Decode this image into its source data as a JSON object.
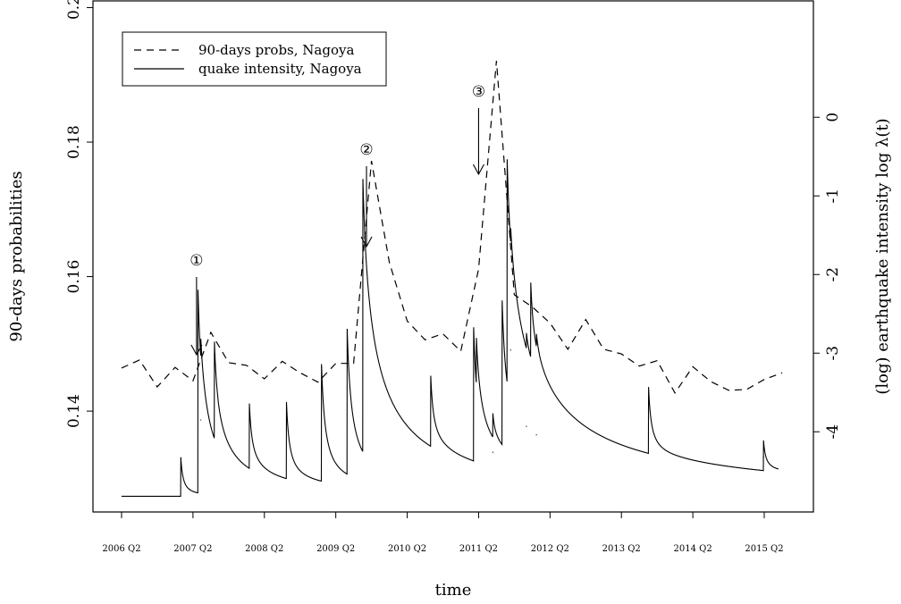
{
  "chart_data": {
    "type": "line",
    "xlabel": "time",
    "ylabel": "90-days probabilities",
    "ylabel_right": "(log) earthquake intensity log λ(t)",
    "ylim": [
      0.125,
      0.201
    ],
    "ylim_right": [
      -5.02,
      1.48
    ],
    "x_ticks": [
      "2006 Q2",
      "2007 Q2",
      "2008 Q2",
      "2009 Q2",
      "2010 Q2",
      "2011 Q2",
      "2012 Q2",
      "2013 Q2",
      "2014 Q2",
      "2015 Q2"
    ],
    "y_ticks": [
      0.14,
      0.16,
      0.18,
      0.2
    ],
    "y_ticks_right": [
      0,
      -1,
      -2,
      -3,
      -4
    ],
    "legend": [
      "90-days probs, Nagoya",
      "quake intensity, Nagoya"
    ],
    "legend_position": "top-left",
    "grid": false,
    "annotations": [
      {
        "label": "①",
        "x": 2007.3
      },
      {
        "label": "②",
        "x": 2009.68
      },
      {
        "label": "③",
        "x": 2011.25
      }
    ],
    "series": [
      {
        "name": "90-days probs, Nagoya",
        "style": "dashed",
        "axis": "left",
        "x": [
          2006.25,
          2006.5,
          2006.75,
          2007.0,
          2007.25,
          2007.5,
          2007.75,
          2008.0,
          2008.25,
          2008.5,
          2008.75,
          2009.0,
          2009.25,
          2009.5,
          2009.75,
          2010.0,
          2010.25,
          2010.5,
          2010.75,
          2011.0,
          2011.25,
          2011.5,
          2011.75,
          2012.0,
          2012.25,
          2012.5,
          2012.75,
          2013.0,
          2013.25,
          2013.5,
          2013.75,
          2014.0,
          2014.25,
          2014.5,
          2014.75,
          2015.0,
          2015.25,
          2015.5
        ],
        "y": [
          0.1464,
          0.1476,
          0.1436,
          0.1465,
          0.1445,
          0.1517,
          0.1472,
          0.1468,
          0.1448,
          0.1474,
          0.1457,
          0.1443,
          0.1471,
          0.1471,
          0.1772,
          0.1621,
          0.1534,
          0.1506,
          0.1515,
          0.1489,
          0.1611,
          0.1921,
          0.1573,
          0.1555,
          0.1531,
          0.1492,
          0.1536,
          0.1492,
          0.1485,
          0.1467,
          0.1475,
          0.1427,
          0.1466,
          0.1444,
          0.1431,
          0.1432,
          0.1447,
          0.1457
        ]
      },
      {
        "name": "quake intensity, Nagoya",
        "style": "solid",
        "axis": "right",
        "baseline": -4.82,
        "events": [
          {
            "x": 2007.08,
            "y": -4.33
          },
          {
            "x": 2007.32,
            "y": -2.2
          },
          {
            "x": 2007.36,
            "y": -3.85
          },
          {
            "x": 2007.55,
            "y": -3.02
          },
          {
            "x": 2008.04,
            "y": -3.78
          },
          {
            "x": 2008.56,
            "y": -3.7
          },
          {
            "x": 2009.05,
            "y": -3.18
          },
          {
            "x": 2009.41,
            "y": -2.73
          },
          {
            "x": 2009.63,
            "y": -0.8
          },
          {
            "x": 2010.58,
            "y": -3.5
          },
          {
            "x": 2011.18,
            "y": -2.74
          },
          {
            "x": 2011.22,
            "y": -3.35
          },
          {
            "x": 2011.45,
            "y": -4.26
          },
          {
            "x": 2011.58,
            "y": -2.41
          },
          {
            "x": 2011.65,
            "y": -0.58
          },
          {
            "x": 2011.7,
            "y": -2.96
          },
          {
            "x": 2011.92,
            "y": -3.93
          },
          {
            "x": 2011.98,
            "y": -2.49
          },
          {
            "x": 2012.06,
            "y": -4.04
          },
          {
            "x": 2013.63,
            "y": -3.63
          },
          {
            "x": 2015.24,
            "y": -4.32
          }
        ]
      }
    ]
  }
}
